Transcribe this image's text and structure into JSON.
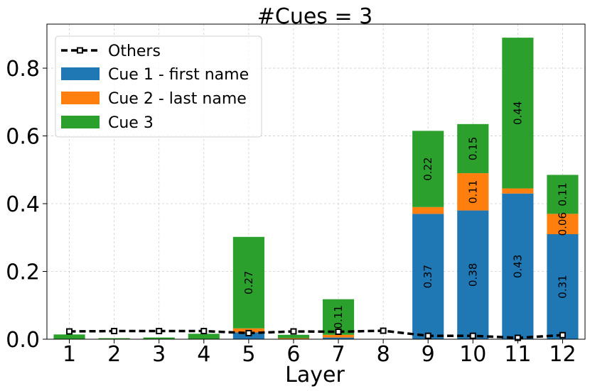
{
  "chart_data": {
    "type": "bar",
    "stacked": true,
    "title": "#Cues = 3",
    "xlabel": "Layer",
    "ylabel": "",
    "ylim": [
      0,
      0.93
    ],
    "yticks": [
      "0.0",
      "0.2",
      "0.4",
      "0.6",
      "0.8"
    ],
    "ytick_values": [
      0.0,
      0.2,
      0.4,
      0.6,
      0.8
    ],
    "categories": [
      "1",
      "2",
      "3",
      "4",
      "5",
      "6",
      "7",
      "8",
      "9",
      "10",
      "11",
      "12"
    ],
    "grid": true,
    "legend_position": "top-left",
    "series": [
      {
        "name": "Cue 1 - first name",
        "color": "#1f77b4",
        "values": [
          0.0,
          0.0,
          0.0,
          0.0,
          0.02,
          0.0,
          0.005,
          0.0,
          0.37,
          0.38,
          0.43,
          0.31
        ],
        "labels": [
          "",
          "",
          "",
          "",
          "",
          "",
          "",
          "",
          "0.37",
          "0.38",
          "0.43",
          "0.31"
        ]
      },
      {
        "name": "Cue 2 - last name",
        "color": "#ff7f0e",
        "values": [
          0.0,
          0.0,
          0.0,
          0.0,
          0.012,
          0.003,
          0.008,
          0.0,
          0.02,
          0.11,
          0.015,
          0.06
        ],
        "labels": [
          "",
          "",
          "",
          "",
          "",
          "",
          "",
          "",
          "",
          "0.11",
          "",
          "0.06"
        ]
      },
      {
        "name": "Cue 3",
        "color": "#2ca02c",
        "values": [
          0.014,
          0.003,
          0.005,
          0.016,
          0.27,
          0.01,
          0.105,
          0.0,
          0.225,
          0.145,
          0.445,
          0.115
        ],
        "labels": [
          "",
          "",
          "",
          "",
          "0.27",
          "",
          "0.11",
          "",
          "0.22",
          "0.15",
          "0.44",
          "0.11"
        ]
      }
    ],
    "line_series": {
      "name": "Others",
      "color": "#000000",
      "values": [
        0.023,
        0.024,
        0.024,
        0.024,
        0.018,
        0.023,
        0.022,
        0.025,
        0.01,
        0.01,
        0.004,
        0.012
      ]
    }
  }
}
